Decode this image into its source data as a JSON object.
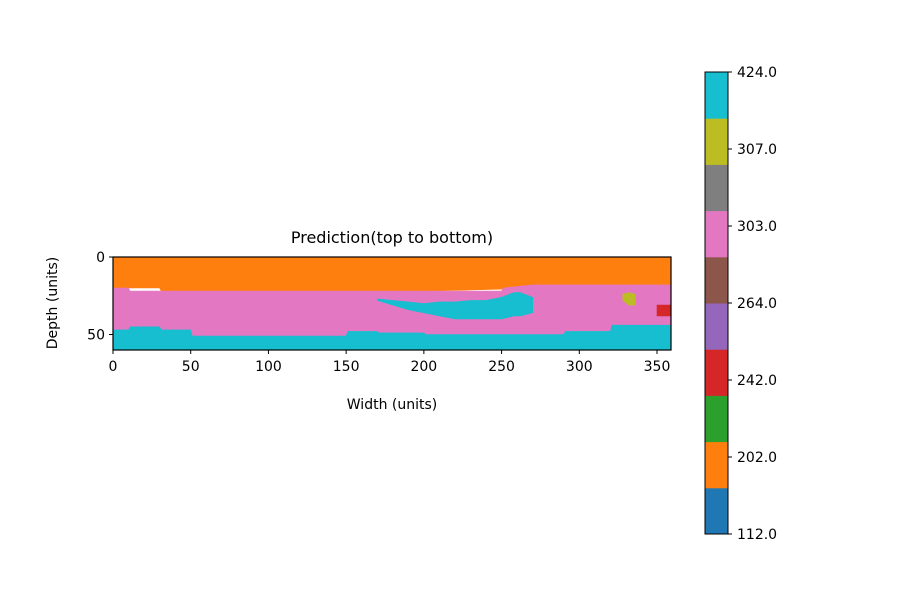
{
  "chart_data": {
    "type": "heatmap",
    "title": "Prediction(top to bottom)",
    "xlabel": "Width (units)",
    "ylabel": "Depth (units)",
    "xlim": [
      0,
      359
    ],
    "ylim": [
      60,
      0
    ],
    "x_ticks": [
      0,
      50,
      100,
      150,
      200,
      250,
      300,
      350
    ],
    "y_ticks": [
      0,
      50
    ],
    "grid": false,
    "colorbar": {
      "placement": "right",
      "tick_labels": [
        "424.0",
        "307.0",
        "303.0",
        "264.0",
        "242.0",
        "202.0",
        "112.0"
      ],
      "class_colors": [
        "#1f77b4",
        "#ff7f0e",
        "#2ca02c",
        "#d62728",
        "#9467bd",
        "#8c564b",
        "#e377c2",
        "#7f7f7f",
        "#bcbd22",
        "#17becf"
      ]
    },
    "layers": [
      {
        "color": "#ff7f0e",
        "boundary_width": [
          0,
          30,
          31,
          120,
          121,
          200,
          201,
          280,
          281,
          333,
          334,
          359
        ],
        "top_depth": [
          0,
          0,
          0,
          0,
          0,
          0,
          0,
          0,
          0,
          0,
          0,
          0
        ],
        "bottom_depth": [
          20,
          20,
          22,
          22,
          22,
          22,
          22,
          20,
          18,
          18,
          18,
          18
        ]
      },
      {
        "color": "#e377c2",
        "boundary_width": [
          0,
          10,
          11,
          30,
          31,
          50,
          51,
          80,
          81,
          100,
          101,
          130,
          131,
          150,
          151,
          170,
          171,
          200,
          201,
          250,
          251,
          270,
          271,
          290,
          291,
          320,
          321,
          359
        ],
        "top_depth": [
          20,
          20,
          22,
          22,
          22,
          22,
          22,
          22,
          22,
          22,
          22,
          22,
          22,
          22,
          22,
          22,
          22,
          22,
          22,
          22,
          20,
          18,
          18,
          18,
          18,
          18,
          18,
          18
        ],
        "bottom_depth": [
          47,
          47,
          45,
          45,
          47,
          47,
          51,
          51,
          51,
          51,
          51,
          51,
          51,
          51,
          48,
          48,
          49,
          49,
          50,
          50,
          50,
          50,
          50,
          50,
          48,
          48,
          44,
          44
        ]
      },
      {
        "color": "#17becf",
        "boundary_width": [
          0,
          10,
          11,
          30,
          31,
          50,
          51,
          80,
          81,
          100,
          101,
          130,
          131,
          150,
          151,
          170,
          171,
          200,
          201,
          250,
          251,
          270,
          271,
          290,
          291,
          320,
          321,
          359
        ],
        "top_depth": [
          47,
          47,
          45,
          45,
          47,
          47,
          51,
          51,
          51,
          51,
          51,
          51,
          51,
          51,
          48,
          48,
          49,
          49,
          50,
          50,
          50,
          50,
          50,
          50,
          48,
          48,
          44,
          44
        ],
        "bottom_depth": [
          60,
          60,
          60,
          60,
          60,
          60,
          60,
          60,
          60,
          60,
          60,
          60,
          60,
          60,
          60,
          60,
          60,
          60,
          60,
          60,
          60,
          60,
          60,
          60,
          60,
          60,
          60,
          60
        ]
      },
      {
        "color": "#17becf",
        "boundary_width": [
          170,
          180,
          190,
          200,
          210,
          220,
          230,
          240,
          250,
          258,
          262,
          270
        ],
        "top_depth": [
          27,
          28,
          29,
          30,
          29,
          29,
          28,
          28,
          26,
          23,
          23,
          26
        ],
        "bottom_depth": [
          28,
          31,
          34,
          36,
          38,
          40,
          40,
          40,
          40,
          38,
          38,
          36
        ]
      },
      {
        "color": "#bcbd22",
        "boundary_width": [
          328,
          332,
          336
        ],
        "top_depth": [
          24,
          23,
          24
        ],
        "bottom_depth": [
          28,
          31,
          31
        ]
      },
      {
        "color": "#d62728",
        "boundary_width": [
          350,
          359
        ],
        "top_depth": [
          31,
          31
        ],
        "bottom_depth": [
          38,
          38
        ]
      }
    ]
  }
}
